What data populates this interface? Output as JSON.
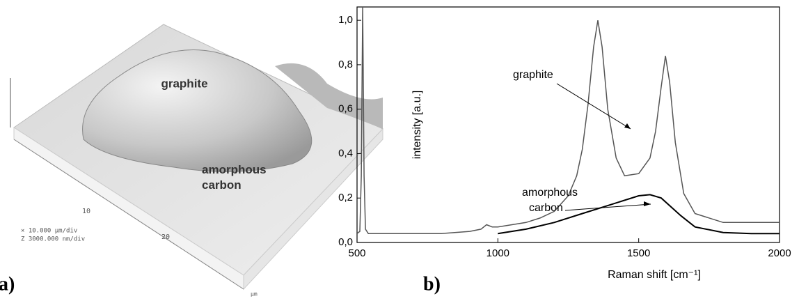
{
  "panel_a": {
    "panel_label": "a)",
    "surface_labels": [
      "graphite",
      "amorphous carbon"
    ],
    "axis_ticks": [
      "10",
      "20"
    ],
    "axis_unit": "µm",
    "scale_notes": [
      "×  10.000 µm/div",
      "Z  3000.000 nm/div"
    ]
  },
  "chart_data": {
    "type": "line",
    "panel_label": "b)",
    "xlabel": "Raman shift [cm⁻¹]",
    "ylabel": "intensity [a.u.]",
    "xlim": [
      500,
      2000
    ],
    "xticks": [
      500,
      1000,
      1500,
      2000
    ],
    "ylim": [
      0,
      1.06
    ],
    "yticks": [
      {
        "value": 0,
        "label": "0,0"
      },
      {
        "value": 0.2,
        "label": "0,2"
      },
      {
        "value": 0.4,
        "label": "0,4"
      },
      {
        "value": 0.6,
        "label": "0,6"
      },
      {
        "value": 0.8,
        "label": "0,8"
      },
      {
        "value": 1.0,
        "label": "1,0"
      }
    ],
    "series": [
      {
        "name": "graphite",
        "color": "#555555",
        "x": [
          500,
          510,
          515,
          520,
          525,
          530,
          540,
          600,
          700,
          800,
          900,
          940,
          960,
          980,
          1000,
          1050,
          1100,
          1150,
          1200,
          1250,
          1280,
          1300,
          1320,
          1340,
          1355,
          1370,
          1390,
          1420,
          1450,
          1500,
          1540,
          1560,
          1580,
          1595,
          1610,
          1630,
          1660,
          1700,
          1800,
          1900,
          2000
        ],
        "values": [
          0.04,
          0.05,
          0.3,
          1.06,
          0.3,
          0.06,
          0.04,
          0.04,
          0.04,
          0.04,
          0.05,
          0.06,
          0.08,
          0.07,
          0.07,
          0.08,
          0.09,
          0.11,
          0.14,
          0.21,
          0.3,
          0.42,
          0.62,
          0.88,
          1.0,
          0.88,
          0.6,
          0.38,
          0.3,
          0.31,
          0.38,
          0.5,
          0.7,
          0.84,
          0.72,
          0.45,
          0.22,
          0.13,
          0.09,
          0.09,
          0.09
        ]
      },
      {
        "name": "amorphous carbon",
        "color": "#000000",
        "x": [
          1000,
          1100,
          1200,
          1300,
          1400,
          1500,
          1540,
          1580,
          1650,
          1700,
          1800,
          1900,
          2000
        ],
        "values": [
          0.04,
          0.06,
          0.09,
          0.13,
          0.17,
          0.21,
          0.215,
          0.2,
          0.12,
          0.07,
          0.045,
          0.04,
          0.04
        ]
      }
    ]
  }
}
